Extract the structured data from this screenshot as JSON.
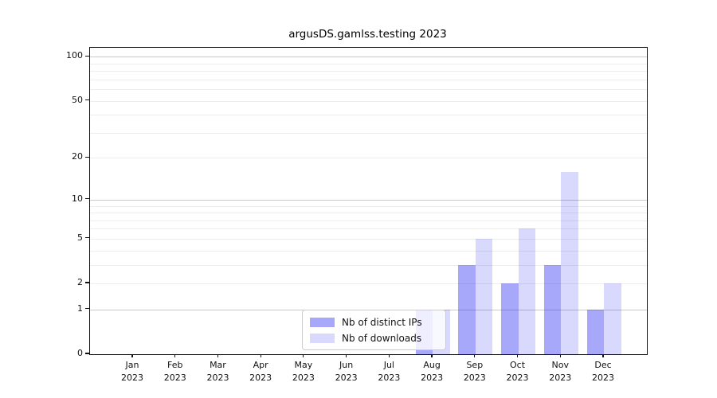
{
  "chart_data": {
    "type": "bar",
    "title": "argusDS.gamlss.testing 2023",
    "categories": [
      {
        "month": "Jan",
        "year": "2023"
      },
      {
        "month": "Feb",
        "year": "2023"
      },
      {
        "month": "Mar",
        "year": "2023"
      },
      {
        "month": "Apr",
        "year": "2023"
      },
      {
        "month": "May",
        "year": "2023"
      },
      {
        "month": "Jun",
        "year": "2023"
      },
      {
        "month": "Jul",
        "year": "2023"
      },
      {
        "month": "Aug",
        "year": "2023"
      },
      {
        "month": "Sep",
        "year": "2023"
      },
      {
        "month": "Oct",
        "year": "2023"
      },
      {
        "month": "Nov",
        "year": "2023"
      },
      {
        "month": "Dec",
        "year": "2023"
      }
    ],
    "series": [
      {
        "name": "Nb of distinct IPs",
        "color": "rgba(6,6,241,0.35)",
        "values": [
          0,
          0,
          0,
          0,
          0,
          0,
          0,
          1,
          3,
          2,
          3,
          1
        ]
      },
      {
        "name": "Nb of downloads",
        "color": "rgba(0,0,240,0.15)",
        "values": [
          0,
          0,
          0,
          0,
          0,
          0,
          0,
          1,
          5,
          6,
          16,
          2
        ]
      }
    ],
    "y_axis": {
      "scale": "log1p",
      "tick_labels": [
        0,
        1,
        2,
        5,
        10,
        20,
        50,
        100
      ],
      "major_gridlines": [
        1,
        10,
        100
      ],
      "minor_gridlines": [
        2,
        3,
        4,
        5,
        6,
        7,
        8,
        9,
        20,
        30,
        40,
        50,
        60,
        70,
        80,
        90
      ],
      "ylim": [
        0,
        115
      ]
    },
    "xlabel": "",
    "ylabel": "",
    "grid": true,
    "legend_position": "lower-center-left"
  }
}
